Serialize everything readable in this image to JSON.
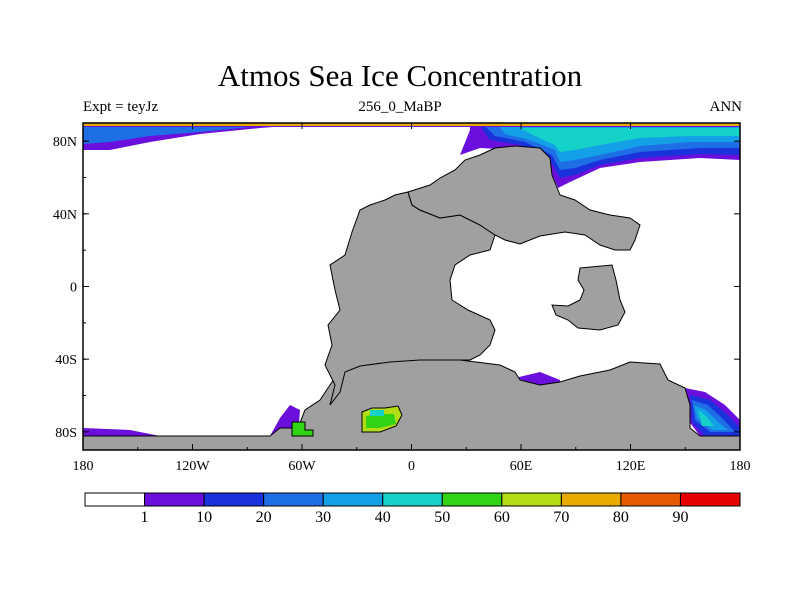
{
  "title": "Atmos Sea Ice Concentration",
  "subtitle_left": "Expt = teyJz",
  "subtitle_center": "256_0_MaBP",
  "subtitle_right": "ANN",
  "x_axis": {
    "ticks": [
      {
        "value": -180,
        "label": "180"
      },
      {
        "value": -120,
        "label": "120W"
      },
      {
        "value": -60,
        "label": "60W"
      },
      {
        "value": 0,
        "label": "0"
      },
      {
        "value": 60,
        "label": "60E"
      },
      {
        "value": 120,
        "label": "120E"
      },
      {
        "value": 180,
        "label": "180"
      }
    ]
  },
  "y_axis": {
    "ticks": [
      {
        "value": 80,
        "label": "80N"
      },
      {
        "value": 40,
        "label": "40N"
      },
      {
        "value": 0,
        "label": "0"
      },
      {
        "value": -40,
        "label": "40S"
      },
      {
        "value": -80,
        "label": "80S"
      }
    ]
  },
  "colorbar": {
    "colors": [
      "#ffffff",
      "#6a0fdc",
      "#1a32dc",
      "#1e6ee6",
      "#14a0e6",
      "#14d2c8",
      "#32d214",
      "#b4dc14",
      "#e6aa00",
      "#e65a00",
      "#e60000"
    ],
    "labels": [
      "1",
      "10",
      "20",
      "30",
      "40",
      "50",
      "60",
      "70",
      "80",
      "90"
    ]
  },
  "colors": {
    "land": "#a0a0a0",
    "ocean": "#ffffff"
  }
}
